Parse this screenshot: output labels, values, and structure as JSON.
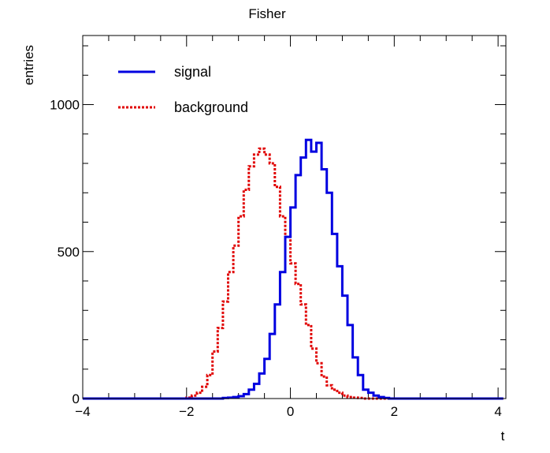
{
  "chart_data": {
    "type": "line",
    "title": "Fisher",
    "xlabel": "t",
    "ylabel": "entries",
    "xlim": [
      -4,
      4.15
    ],
    "ylim": [
      0,
      1235
    ],
    "grid": false,
    "legend_position": "top-left",
    "x_ticks": [
      -4,
      -2,
      0,
      2,
      4
    ],
    "x_tick_labels": [
      "−4",
      "−2",
      "0",
      "2",
      "4"
    ],
    "y_ticks": [
      0,
      500,
      1000
    ],
    "y_tick_labels": [
      "0",
      "500",
      "1000"
    ],
    "bin_edges": [
      -4.0,
      -3.9,
      -3.8,
      -3.7,
      -3.6,
      -3.5,
      -3.4,
      -3.3,
      -3.2,
      -3.1,
      -3.0,
      -2.9,
      -2.8,
      -2.7,
      -2.6,
      -2.5,
      -2.4,
      -2.3,
      -2.2,
      -2.1,
      -2.0,
      -1.9,
      -1.8,
      -1.7,
      -1.6,
      -1.5,
      -1.4,
      -1.3,
      -1.2,
      -1.1,
      -1.0,
      -0.9,
      -0.8,
      -0.7,
      -0.6,
      -0.5,
      -0.4,
      -0.3,
      -0.2,
      -0.1,
      0.0,
      0.1,
      0.2,
      0.3,
      0.4,
      0.5,
      0.6,
      0.7,
      0.8,
      0.9,
      1.0,
      1.1,
      1.2,
      1.3,
      1.4,
      1.5,
      1.6,
      1.7,
      1.8,
      1.9,
      2.0,
      2.1,
      2.2,
      2.3,
      2.4,
      2.5,
      2.6,
      2.7,
      2.8,
      2.9,
      3.0,
      3.1,
      3.2,
      3.3,
      3.4,
      3.5,
      3.6,
      3.7,
      3.8,
      3.9,
      4.0,
      4.1
    ],
    "series": [
      {
        "name": "signal",
        "color": "#0000e0",
        "style": "solid",
        "values": [
          0,
          0,
          0,
          0,
          0,
          0,
          0,
          0,
          0,
          0,
          0,
          0,
          0,
          0,
          0,
          0,
          0,
          0,
          0,
          0,
          0,
          0,
          0,
          0,
          0,
          0,
          0,
          2,
          3,
          5,
          8,
          15,
          30,
          50,
          85,
          135,
          220,
          320,
          430,
          550,
          650,
          760,
          820,
          880,
          840,
          870,
          780,
          700,
          560,
          450,
          350,
          250,
          140,
          80,
          30,
          20,
          10,
          5,
          2,
          0,
          0,
          0,
          0,
          0,
          0,
          0,
          0,
          0,
          0,
          0,
          0,
          0,
          0,
          0,
          0,
          0,
          0,
          0,
          0,
          0,
          0
        ]
      },
      {
        "name": "background",
        "color": "#e00000",
        "style": "dotted",
        "values": [
          0,
          0,
          0,
          0,
          0,
          0,
          0,
          0,
          0,
          0,
          0,
          0,
          0,
          0,
          0,
          0,
          0,
          0,
          0,
          0,
          3,
          10,
          20,
          40,
          80,
          160,
          240,
          330,
          430,
          520,
          620,
          710,
          790,
          830,
          850,
          830,
          800,
          720,
          620,
          550,
          460,
          390,
          320,
          250,
          170,
          120,
          75,
          45,
          30,
          20,
          10,
          5,
          3,
          2,
          0,
          0,
          0,
          0,
          0,
          0,
          0,
          0,
          0,
          0,
          0,
          0,
          0,
          0,
          0,
          0,
          0,
          0,
          0,
          0,
          0,
          0,
          0,
          0,
          0,
          0,
          0
        ]
      }
    ]
  }
}
